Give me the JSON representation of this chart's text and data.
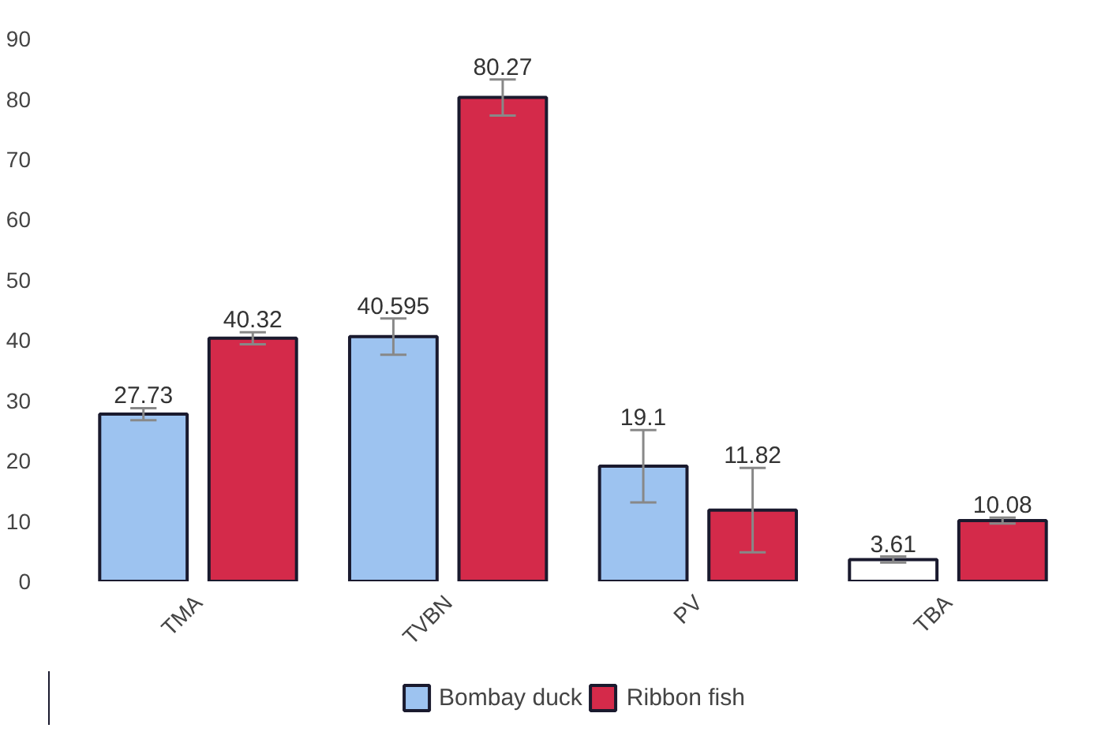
{
  "chart_data": {
    "type": "bar",
    "categories": [
      "TMA",
      "TVBN",
      "PV",
      "TBA"
    ],
    "series": [
      {
        "name": "Bombay duck",
        "color": "#9dc3f0",
        "colors": [
          "#9dc3f0",
          "#9dc3f0",
          "#9dc3f0",
          "#ffffff"
        ],
        "values": [
          27.73,
          40.595,
          19.1,
          3.61
        ],
        "errors": [
          1,
          3,
          6,
          0.5
        ]
      },
      {
        "name": "Ribbon fish",
        "color": "#d42a4a",
        "values": [
          40.32,
          80.27,
          11.82,
          10.08
        ],
        "errors": [
          1,
          3,
          7,
          0.5
        ]
      }
    ],
    "ylim": [
      0,
      90
    ],
    "yticks": [
      0,
      10,
      20,
      30,
      40,
      50,
      60,
      70,
      80,
      90
    ],
    "grid": false,
    "legend": "bottom",
    "data_labels": true
  }
}
